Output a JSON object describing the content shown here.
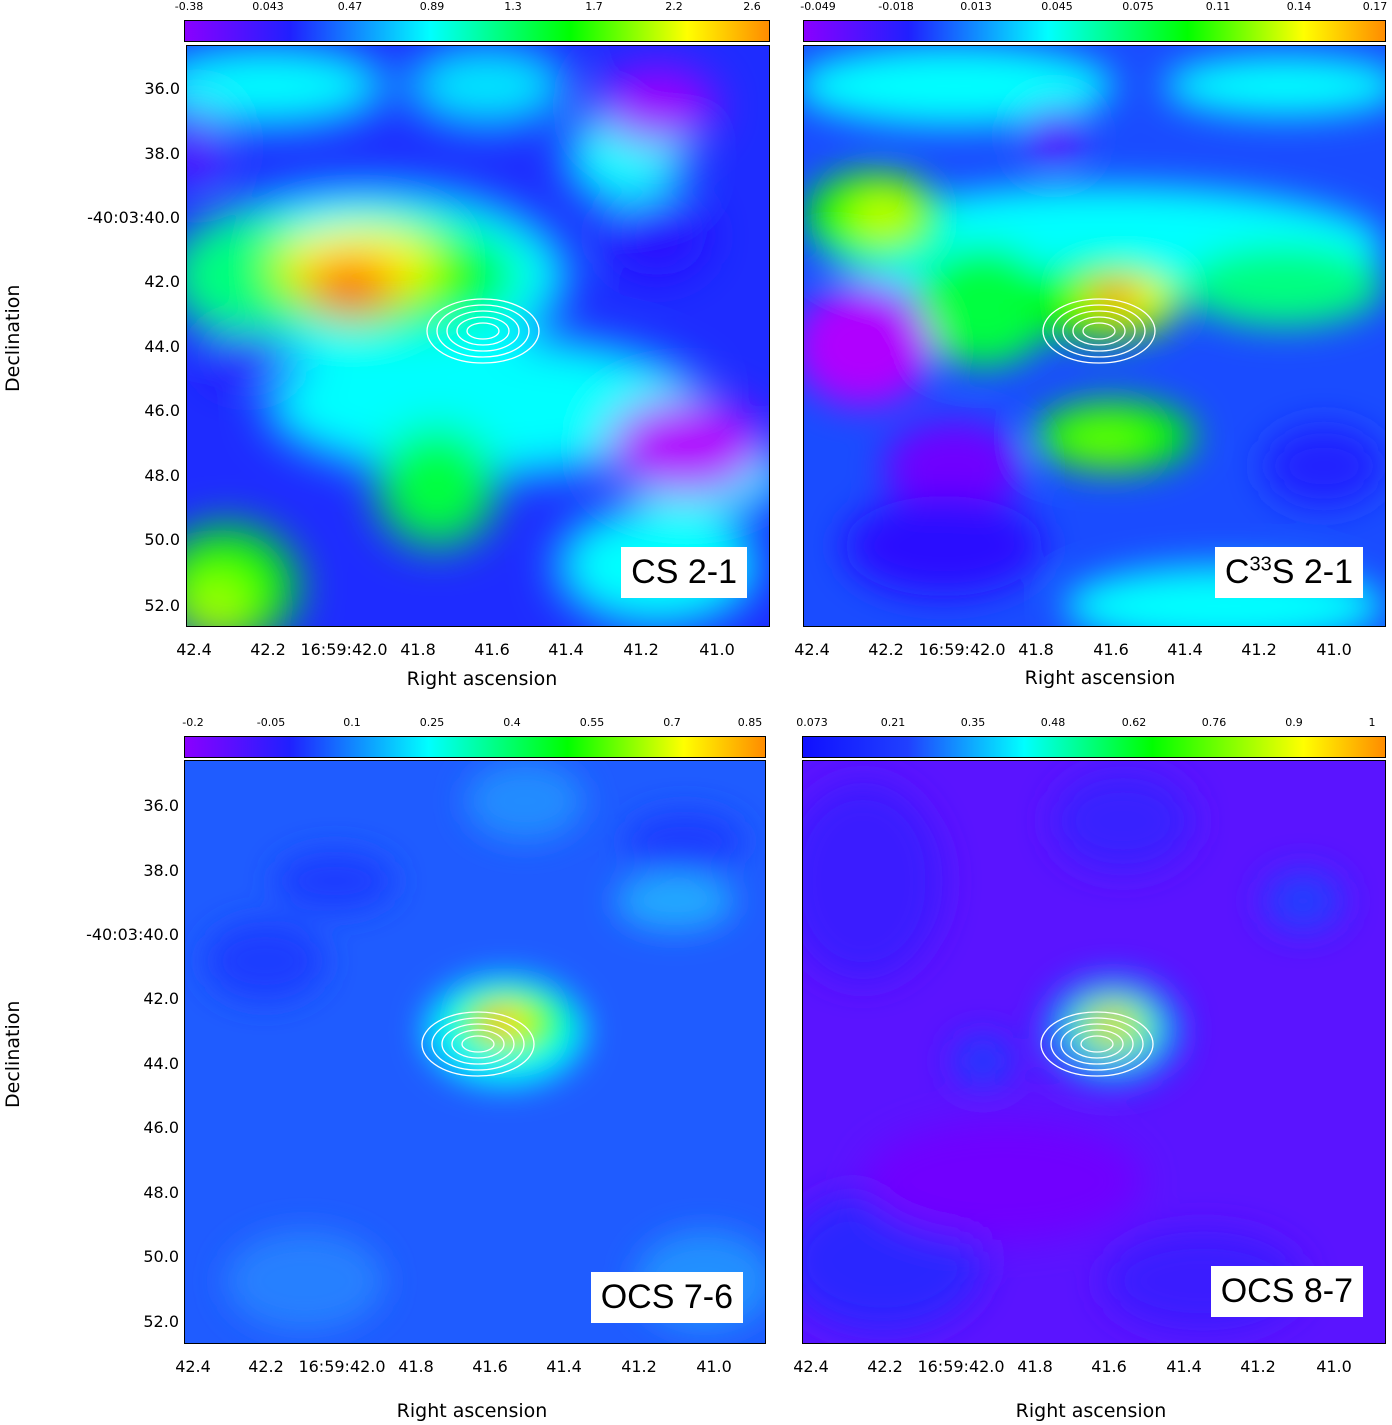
{
  "axes": {
    "xlabel": "Right ascension",
    "ylabel": "Declination",
    "xticks": [
      "42.4",
      "42.2",
      "16:59:42.0",
      "41.8",
      "41.6",
      "41.4",
      "41.2",
      "41.0"
    ],
    "yticks": [
      "36.0",
      "38.0",
      "-40:03:40.0",
      "42.0",
      "44.0",
      "46.0",
      "48.0",
      "50.0",
      "52.0"
    ]
  },
  "panels": [
    {
      "name": "cs-2-1",
      "label": "CS 2-1",
      "colorbar_ticks": [
        "-0.38",
        "0.043",
        "0.47",
        "0.89",
        "1.3",
        "1.7",
        "2.2",
        "2.6"
      ],
      "background": "#1e2cff"
    },
    {
      "name": "c33s-2-1",
      "label_main": "C",
      "label_sup": "33",
      "label_rest": "S 2-1",
      "colorbar_ticks": [
        "-0.049",
        "-0.018",
        "0.013",
        "0.045",
        "0.075",
        "0.11",
        "0.14",
        "0.17"
      ],
      "background": "#1a4cff"
    },
    {
      "name": "ocs-7-6",
      "label": "OCS 7-6",
      "colorbar_ticks": [
        "-0.2",
        "-0.05",
        "0.1",
        "0.25",
        "0.4",
        "0.55",
        "0.7",
        "0.85"
      ],
      "background": "#1f5cff"
    },
    {
      "name": "ocs-8-7",
      "label": "OCS 8-7",
      "colorbar_ticks": [
        "0.073",
        "0.21",
        "0.35",
        "0.48",
        "0.62",
        "0.76",
        "0.9",
        "1"
      ],
      "background": "#5a14ff"
    }
  ],
  "colors": {
    "violet": "#8a00ff",
    "blue": "#2020ff",
    "cyan": "#00ffff",
    "green": "#00ff00",
    "yellow": "#ffff00",
    "orange": "#ff8c00",
    "red": "#ff2000",
    "contour": "#ffffff"
  }
}
